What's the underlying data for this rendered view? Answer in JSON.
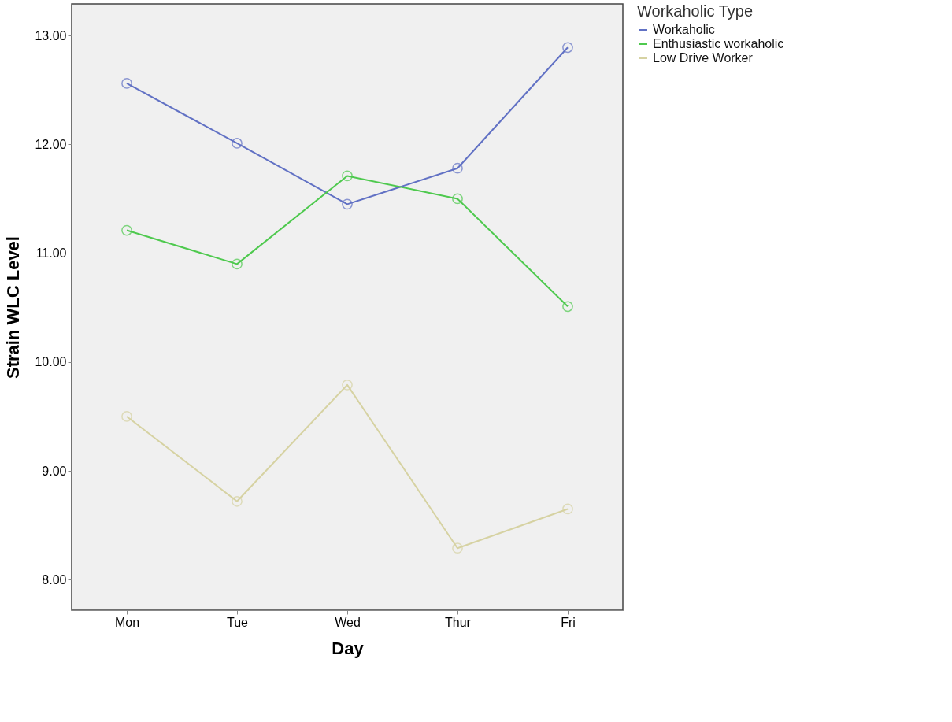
{
  "chart_data": {
    "type": "line",
    "xlabel": "Day",
    "ylabel": "Strain WLC Level",
    "legend_title": "Workaholic Type",
    "categories": [
      "Mon",
      "Tue",
      "Wed",
      "Thur",
      "Fri"
    ],
    "series": [
      {
        "name": "Workaholic",
        "color": "#6171c4",
        "values": [
          12.56,
          12.01,
          11.45,
          11.78,
          12.89
        ]
      },
      {
        "name": "Enthusiastic workaholic",
        "color": "#4ec94e",
        "values": [
          11.21,
          10.9,
          11.71,
          11.5,
          10.51
        ]
      },
      {
        "name": "Low Drive Worker",
        "color": "#d6d2a2",
        "values": [
          9.5,
          8.72,
          9.79,
          8.29,
          8.65
        ]
      }
    ],
    "ylim": [
      7.72,
      13.29
    ],
    "yticks": [
      {
        "value": 8,
        "label": "8.00"
      },
      {
        "value": 9,
        "label": "9.00"
      },
      {
        "value": 10,
        "label": "10.00"
      },
      {
        "value": 11,
        "label": "11.00"
      },
      {
        "value": 12,
        "label": "12.00"
      },
      {
        "value": 13,
        "label": "13.00"
      }
    ],
    "grid": false,
    "legend": "top right",
    "marker": "circle",
    "line_style": "solid"
  }
}
